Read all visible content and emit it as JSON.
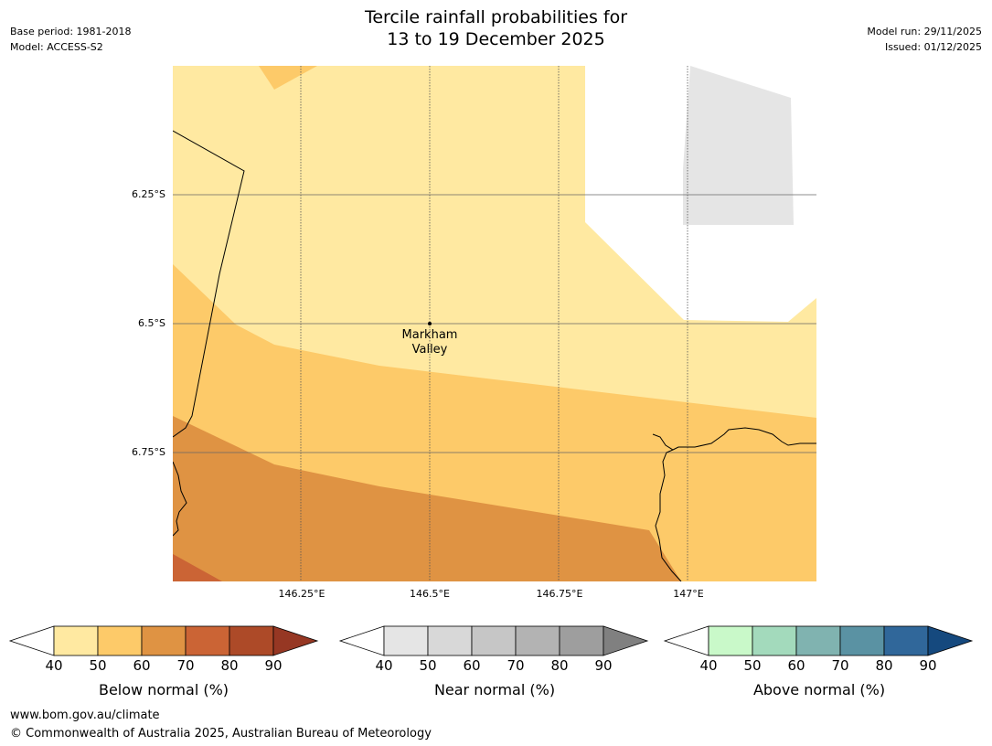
{
  "header": {
    "base_period": "Base period: 1981-2018",
    "model": "Model: ACCESS-S2",
    "model_run": "Model run: 29/11/2025",
    "issued": "Issued: 01/12/2025",
    "title_line1": "Tercile rainfall probabilities for",
    "title_line2": "13 to 19 December 2025"
  },
  "map": {
    "lat_labels": [
      "6.25°S",
      "6.5°S",
      "6.75°S"
    ],
    "lon_labels": [
      "146.25°E",
      "146.5°E",
      "146.75°E",
      "147°E"
    ],
    "place_label_line1": "Markham",
    "place_label_line2": "Valley"
  },
  "legends": {
    "below": {
      "title": "Below normal (%)",
      "ticks": [
        "40",
        "50",
        "60",
        "70",
        "80",
        "90"
      ],
      "colors": [
        "#ffffff",
        "#ffe9a1",
        "#fdca69",
        "#df9343",
        "#cb6435",
        "#ad4a28",
        "#963723"
      ]
    },
    "near": {
      "title": "Near normal (%)",
      "ticks": [
        "40",
        "50",
        "60",
        "70",
        "80",
        "90"
      ],
      "colors": [
        "#ffffff",
        "#e5e5e5",
        "#d8d8d8",
        "#c6c6c6",
        "#b3b3b3",
        "#9e9e9e",
        "#808080"
      ]
    },
    "above": {
      "title": "Above normal (%)",
      "ticks": [
        "40",
        "50",
        "60",
        "70",
        "80",
        "90"
      ],
      "colors": [
        "#ffffff",
        "#c9f9c9",
        "#a3dabc",
        "#80b3b0",
        "#5a92a3",
        "#30679a",
        "#15497e"
      ]
    }
  },
  "footer": {
    "url": "www.bom.gov.au/climate",
    "copyright": "© Commonwealth of Australia 2025, Australian Bureau of Meteorology"
  }
}
